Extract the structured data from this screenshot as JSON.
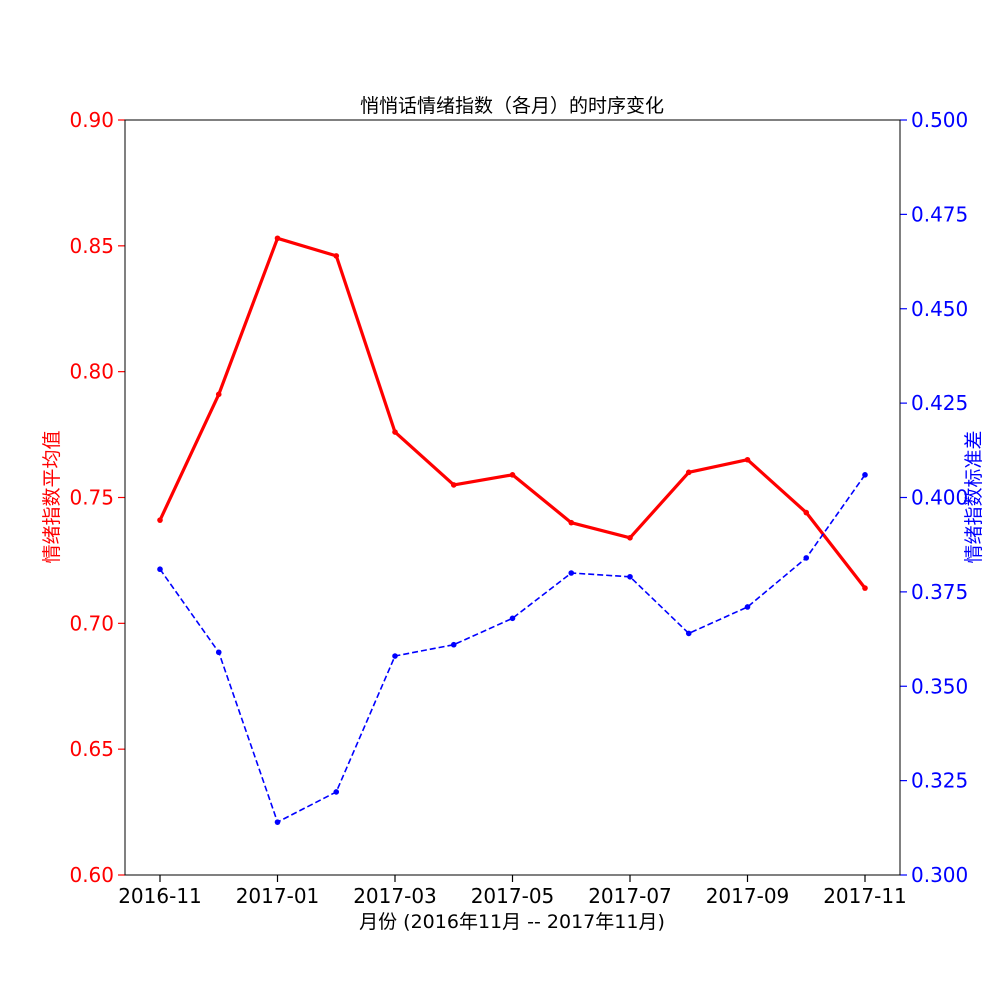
{
  "chart_data": {
    "type": "line",
    "title": "悄悄话情绪指数（各月）的时序变化",
    "xlabel": "月份 (2016年11月 -- 2017年11月)",
    "ylabel_left": "情绪指数平均值",
    "ylabel_right": "情绪指数标准差",
    "x": [
      "2016-11",
      "2016-12",
      "2017-01",
      "2017-02",
      "2017-03",
      "2017-04",
      "2017-05",
      "2017-06",
      "2017-07",
      "2017-08",
      "2017-09",
      "2017-10",
      "2017-11"
    ],
    "xticks": [
      "2016-11",
      "2017-01",
      "2017-03",
      "2017-05",
      "2017-07",
      "2017-09",
      "2017-11"
    ],
    "ylim_left": [
      0.6,
      0.9
    ],
    "yticks_left": [
      "0.60",
      "0.65",
      "0.70",
      "0.75",
      "0.80",
      "0.85",
      "0.90"
    ],
    "ylim_right": [
      0.3,
      0.5
    ],
    "yticks_right": [
      "0.300",
      "0.325",
      "0.350",
      "0.375",
      "0.400",
      "0.425",
      "0.450",
      "0.475",
      "0.500"
    ],
    "series": [
      {
        "name": "情绪指数平均值",
        "axis": "left",
        "color": "#ff0000",
        "style": "solid",
        "values": [
          0.741,
          0.791,
          0.853,
          0.846,
          0.776,
          0.755,
          0.759,
          0.74,
          0.734,
          0.76,
          0.765,
          0.744,
          0.714
        ]
      },
      {
        "name": "情绪指数标准差",
        "axis": "right",
        "color": "#0000ff",
        "style": "dashed",
        "values": [
          0.381,
          0.359,
          0.314,
          0.322,
          0.358,
          0.361,
          0.368,
          0.38,
          0.379,
          0.364,
          0.371,
          0.384,
          0.406
        ]
      }
    ]
  }
}
